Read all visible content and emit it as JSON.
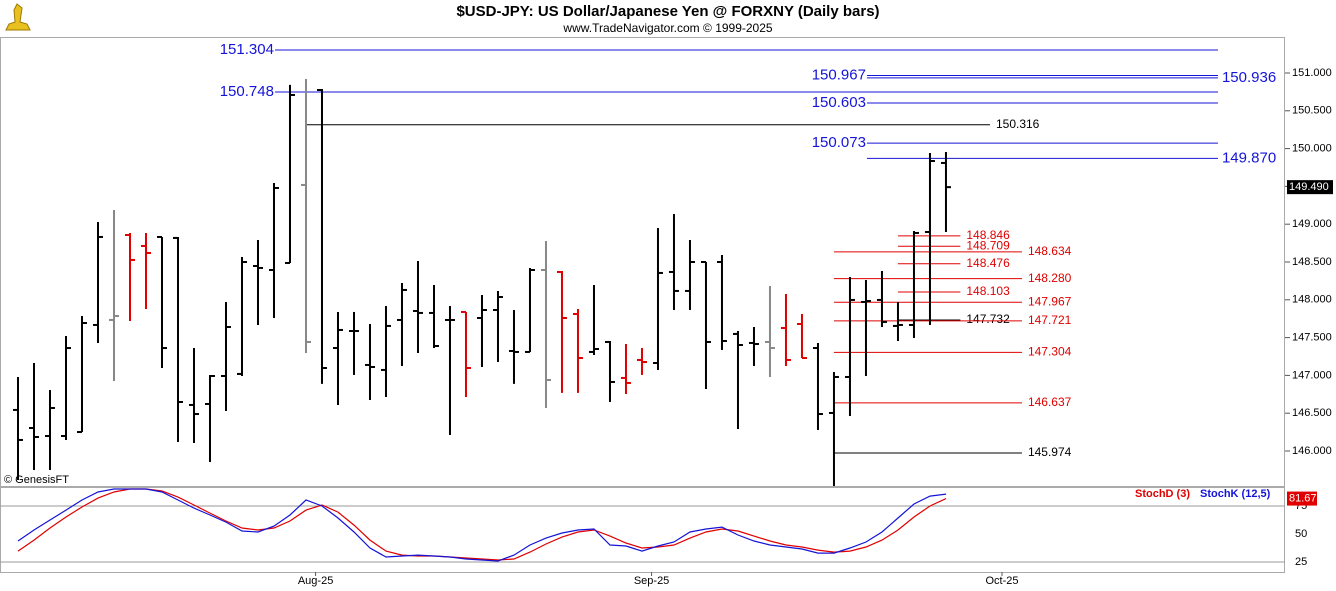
{
  "chart_data": [
    {
      "type": "ohlc",
      "title": "$USD-JPY:  US Dollar/Japanese Yen @ FORXNY  (Daily bars)",
      "subtitle": "www.TradeNavigator.com © 1999-2025",
      "credit": "© GenesisFT",
      "open": [
        146.543,
        146.304,
        146.198,
        146.198,
        146.251,
        147.667,
        147.733,
        148.857,
        148.712,
        148.831,
        148.818,
        146.609,
        146.622,
        146.992,
        147.019,
        148.447,
        148.394,
        148.487,
        149.519,
        150.775,
        147.362,
        147.587,
        147.138,
        147.072,
        147.733,
        147.852,
        147.826,
        147.733,
        147.839,
        147.759,
        147.865,
        147.323,
        147.31,
        148.394,
        148.368,
        147.812,
        147.31,
        147.442,
        146.966,
        147.204,
        147.164,
        148.368,
        148.117,
        148.5,
        148.5,
        147.548,
        147.429,
        147.442,
        147.627,
        147.68,
        147.362,
        146.503,
        146.979,
        147.971,
        147.998,
        147.654,
        147.667,
        148.897,
        149.81
      ],
      "high": [
        146.979,
        147.164,
        146.807,
        147.521,
        147.786,
        149.029,
        149.188,
        148.884,
        148.884,
        148.831,
        148.831,
        147.362,
        147.006,
        147.971,
        148.566,
        148.791,
        149.545,
        150.842,
        150.921,
        150.789,
        147.839,
        147.839,
        147.68,
        147.918,
        148.222,
        148.513,
        148.196,
        147.918,
        147.839,
        148.064,
        148.117,
        147.865,
        148.421,
        148.778,
        148.381,
        147.879,
        148.196,
        147.455,
        147.415,
        147.362,
        148.95,
        149.135,
        148.791,
        148.5,
        148.593,
        147.587,
        147.64,
        148.183,
        148.077,
        147.812,
        147.429,
        147.045,
        148.302,
        148.262,
        148.381,
        147.971,
        148.91,
        149.942,
        149.955
      ],
      "low": [
        145.616,
        145.749,
        145.749,
        146.146,
        146.251,
        147.429,
        146.926,
        147.72,
        147.879,
        147.098,
        146.119,
        146.106,
        145.855,
        146.529,
        146.992,
        147.667,
        147.759,
        148.487,
        147.296,
        146.887,
        146.609,
        147.006,
        146.675,
        146.714,
        147.124,
        147.296,
        147.362,
        146.212,
        146.714,
        147.111,
        147.177,
        146.887,
        147.31,
        146.569,
        146.768,
        146.768,
        147.27,
        146.648,
        146.754,
        147.006,
        147.072,
        147.865,
        147.865,
        146.82,
        147.336,
        146.291,
        147.124,
        146.979,
        147.124,
        147.23,
        146.278,
        145.537,
        146.463,
        146.992,
        147.64,
        147.455,
        147.495,
        147.667,
        148.897
      ],
      "close": [
        146.146,
        146.185,
        146.569,
        147.362,
        147.693,
        148.831,
        147.786,
        148.527,
        148.619,
        147.362,
        146.648,
        146.489,
        146.992,
        147.64,
        148.5,
        148.421,
        149.479,
        150.709,
        147.442,
        147.098,
        147.601,
        147.587,
        147.111,
        147.654,
        148.13,
        147.826,
        147.389,
        147.733,
        147.098,
        147.865,
        148.037,
        147.31,
        148.394,
        146.939,
        147.759,
        147.23,
        147.349,
        146.913,
        146.9,
        147.177,
        148.355,
        148.117,
        148.5,
        147.442,
        147.455,
        147.402,
        147.415,
        147.362,
        147.204,
        147.23,
        146.489,
        146.979,
        147.998,
        147.984,
        147.707,
        147.667,
        148.884,
        149.836,
        149.49
      ],
      "bar_colors": [
        "#000",
        "#000",
        "#000",
        "#000",
        "#000",
        "#000",
        "#888",
        "#e00000",
        "#e00000",
        "#000",
        "#000",
        "#000",
        "#000",
        "#000",
        "#000",
        "#000",
        "#000",
        "#000",
        "#888",
        "#000",
        "#000",
        "#000",
        "#000",
        "#000",
        "#000",
        "#000",
        "#000",
        "#000",
        "#e00000",
        "#000",
        "#000",
        "#000",
        "#000",
        "#888",
        "#e00000",
        "#e00000",
        "#000",
        "#000",
        "#e00000",
        "#e00000",
        "#000",
        "#000",
        "#000",
        "#000",
        "#000",
        "#000",
        "#000",
        "#888",
        "#e00000",
        "#e00000",
        "#000",
        "#000",
        "#000",
        "#000",
        "#000",
        "#000",
        "#000",
        "#000",
        "#000"
      ],
      "last_price_label": "149.490",
      "xlim": [
        -1.125,
        79.19
      ],
      "xticks": [
        {
          "value": 18.6,
          "label": "Aug-25"
        },
        {
          "value": 39.6,
          "label": "Sep-25"
        },
        {
          "value": 61.5,
          "label": "Oct-25"
        }
      ],
      "ylim": [
        145.537,
        151.476
      ],
      "yticks": [
        {
          "value": 146,
          "label": "146.000"
        },
        {
          "value": 146.5,
          "label": "146.500"
        },
        {
          "value": 147,
          "label": "147.000"
        },
        {
          "value": 147.5,
          "label": "147.500"
        },
        {
          "value": 148,
          "label": "148.000"
        },
        {
          "value": 148.5,
          "label": "148.500"
        },
        {
          "value": 149,
          "label": "149.000"
        },
        {
          "value": 149.5,
          "label": "149.500"
        },
        {
          "value": 150,
          "label": "150.000"
        },
        {
          "value": 150.5,
          "label": "150.500"
        },
        {
          "value": 151,
          "label": "151.000"
        }
      ],
      "levels": [
        {
          "value": 151.304,
          "color": "#1414d8",
          "x": [
            16.06,
            75
          ],
          "side": "left"
        },
        {
          "value": 150.967,
          "color": "#1414d8",
          "x": [
            53.06,
            75
          ],
          "side": "left"
        },
        {
          "value": 150.936,
          "color": "#1414d8",
          "x": [
            53.06,
            75
          ],
          "side": "right"
        },
        {
          "value": 150.748,
          "color": "#1414d8",
          "x": [
            16.06,
            75
          ],
          "side": "left"
        },
        {
          "value": 150.603,
          "color": "#1414d8",
          "x": [
            53.06,
            75
          ],
          "side": "left"
        },
        {
          "value": 150.316,
          "color": "#000000",
          "x": [
            18,
            60.75
          ],
          "side": "right"
        },
        {
          "value": 150.073,
          "color": "#1414d8",
          "x": [
            53.06,
            75
          ],
          "side": "left"
        },
        {
          "value": 149.87,
          "label": "149.870",
          "color": "#1414d8",
          "x": [
            53.06,
            75
          ],
          "side": "right"
        },
        {
          "value": 148.846,
          "color": "#e00000",
          "x": [
            55,
            58.9
          ],
          "side": "right"
        },
        {
          "value": 148.709,
          "color": "#e00000",
          "x": [
            55,
            58.9
          ],
          "side": "right"
        },
        {
          "value": 148.634,
          "color": "#e00000",
          "x": [
            51,
            62.75
          ],
          "side": "right"
        },
        {
          "value": 148.476,
          "color": "#e00000",
          "x": [
            55,
            58.9
          ],
          "side": "right"
        },
        {
          "value": 148.28,
          "label": "148.280",
          "color": "#e00000",
          "x": [
            51,
            62.75
          ],
          "side": "right"
        },
        {
          "value": 148.103,
          "color": "#e00000",
          "x": [
            55,
            58.9
          ],
          "side": "right"
        },
        {
          "value": 147.967,
          "color": "#e00000",
          "x": [
            51,
            62.75
          ],
          "side": "right"
        },
        {
          "value": 147.732,
          "color": "#000000",
          "x": [
            55,
            58.9
          ],
          "side": "right"
        },
        {
          "value": 147.721,
          "color": "#e00000",
          "x": [
            51,
            62.75
          ],
          "side": "right"
        },
        {
          "value": 147.304,
          "color": "#e00000",
          "x": [
            51,
            62.75
          ],
          "side": "right"
        },
        {
          "value": 146.637,
          "color": "#e00000",
          "x": [
            51,
            62.75
          ],
          "side": "right"
        },
        {
          "value": 145.974,
          "color": "#000000",
          "x": [
            51,
            62.75
          ],
          "side": "right"
        }
      ]
    },
    {
      "type": "line",
      "series": [
        {
          "name": "StochD (3)",
          "color": "#e00000",
          "last_value_label": "81.67",
          "values": [
            34.8,
            44.6,
            55.4,
            65.2,
            74.1,
            82.1,
            87.5,
            90.2,
            90.2,
            88.4,
            83.0,
            75.9,
            68.7,
            61.6,
            55.4,
            53.6,
            55.4,
            61.6,
            71.4,
            75.9,
            69.6,
            58.0,
            44.6,
            34.8,
            31.2,
            30.4,
            30.4,
            29.5,
            28.6,
            27.7,
            26.8,
            27.7,
            33.9,
            41.1,
            47.3,
            51.8,
            53.6,
            48.2,
            42.0,
            37.5,
            38.4,
            40.2,
            46.4,
            51.8,
            54.5,
            52.7,
            48.2,
            43.8,
            40.2,
            38.4,
            35.7,
            33.9,
            34.8,
            38.4,
            44.6,
            53.6,
            65.2,
            75,
            81.67
          ]
        },
        {
          "name": "StochK (12,5)",
          "color": "#1414d8",
          "values": [
            43.8,
            53.6,
            62.5,
            71.4,
            80.4,
            87.5,
            90.2,
            90.2,
            90.2,
            87.5,
            80.4,
            73.2,
            67.0,
            60.7,
            52.7,
            51.8,
            57.1,
            67.0,
            80.4,
            75,
            64.3,
            51.8,
            37.5,
            29.5,
            30.4,
            31.2,
            30.4,
            29.5,
            27.7,
            26.8,
            25.9,
            31.2,
            40.2,
            46.4,
            50.9,
            53.6,
            54.5,
            40.2,
            39.3,
            34.8,
            39.3,
            42.9,
            51.8,
            54.5,
            56.2,
            49.1,
            43.8,
            40.2,
            38.4,
            36.6,
            33.0,
            33.0,
            37.5,
            42.9,
            51.8,
            64.3,
            76.8,
            83.9,
            85.7
          ]
        }
      ],
      "ylim": [
        16.1,
        92
      ],
      "yticks": [
        25,
        50,
        75
      ]
    }
  ]
}
